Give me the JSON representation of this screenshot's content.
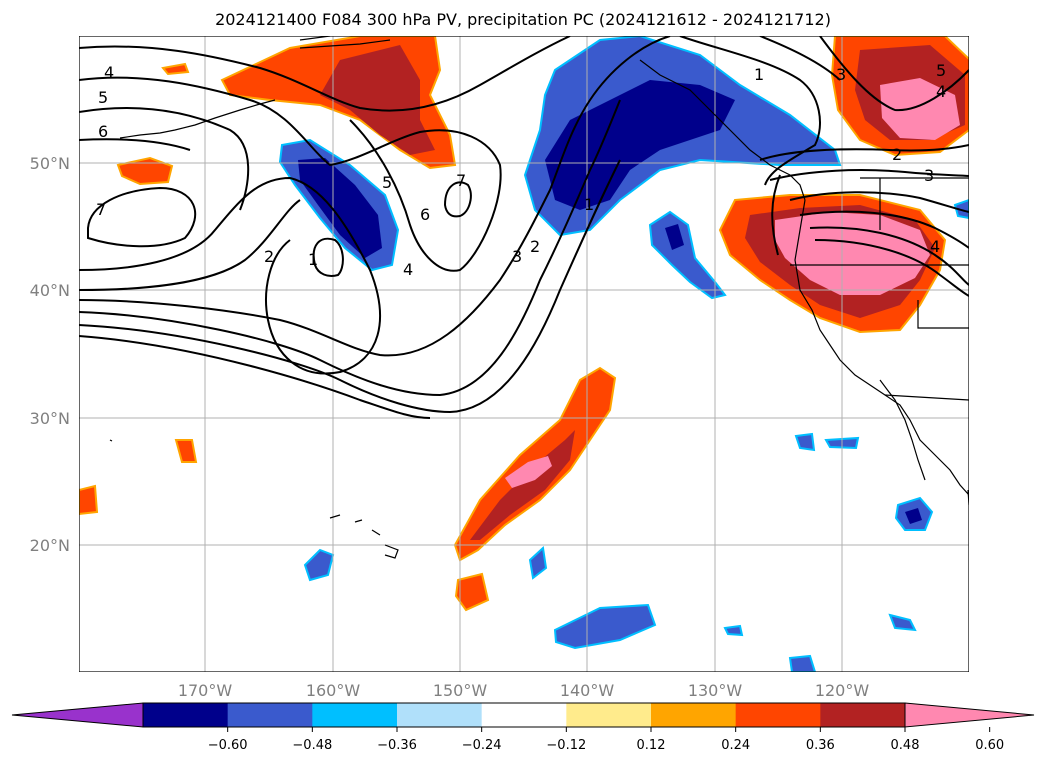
{
  "title": "2024121400 F084 300 hPa PV, precipitation PC (2024121612 - 2024121712)",
  "lat_labels": [
    "50°N",
    "40°N",
    "30°N",
    "20°N"
  ],
  "lon_labels": [
    "170°W",
    "160°W",
    "150°W",
    "140°W",
    "130°W",
    "120°W"
  ],
  "colorbar": {
    "colors": [
      "#9932cc",
      "#00008b",
      "#3a5acd",
      "#00bfff",
      "#b0e0fa",
      "#ffffff",
      "#ffeb8c",
      "#ffa500",
      "#ff4500",
      "#b22222",
      "#ff88b0"
    ],
    "ticks": [
      "−0.60",
      "−0.48",
      "−0.36",
      "−0.24",
      "−0.12",
      "0.12",
      "0.24",
      "0.36",
      "0.48",
      "0.60"
    ]
  },
  "contour_labels": [
    "4",
    "5",
    "6",
    "7",
    "2",
    "1",
    "5",
    "6",
    "7",
    "4",
    "3",
    "2",
    "1",
    "1",
    "3",
    "2",
    "3",
    "4",
    "5",
    "4"
  ]
}
